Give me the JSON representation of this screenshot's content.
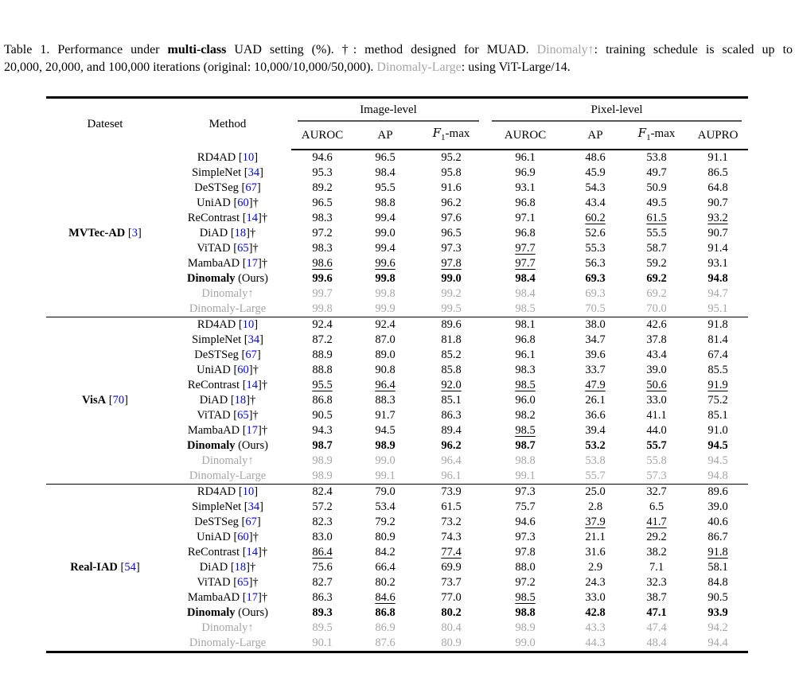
{
  "colors": {
    "citation": "#0000EE",
    "gray_text": "#A6A6A6",
    "rule": "#000000"
  },
  "caption": {
    "label": "table-1-caption",
    "lines": [
      {
        "segments": [
          {
            "text": "Table 1. Performance under ",
            "style": "normal"
          },
          {
            "text": "multi-class",
            "style": "bold"
          },
          {
            "text": " UAD setting (%). †: method designed for MUAD. ",
            "style": "normal"
          },
          {
            "text": "Dinomaly↑",
            "style": "gray"
          },
          {
            "text": ": training schedule is scaled up to",
            "style": "normal"
          }
        ]
      },
      {
        "segments": [
          {
            "text": "20,000, 20,000, and 100,000 iterations (original: 10,000/10,000/50,000). ",
            "style": "normal"
          },
          {
            "text": "Dinomaly-Large",
            "style": "gray"
          },
          {
            "text": ": using ViT-Large/14.",
            "style": "normal"
          }
        ]
      }
    ]
  },
  "table": {
    "corner_headers": [
      "Dateset",
      "Method"
    ],
    "group_headers": [
      {
        "label": "Image-level",
        "span": 3
      },
      {
        "label": "Pixel-level",
        "span": 4
      }
    ],
    "sub_headers": [
      "AUROC",
      "AP",
      "F1-max",
      "AUROC",
      "AP",
      "F1-max",
      "AUPRO"
    ],
    "groups": [
      {
        "dataset": {
          "name": "MVTec-AD",
          "cite": "3"
        },
        "rows": [
          {
            "method": "RD4AD",
            "cite": "10",
            "dagger": false,
            "style": "normal",
            "values": [
              "94.6",
              "96.5",
              "95.2",
              "96.1",
              "48.6",
              "53.8",
              "91.1"
            ],
            "underline": []
          },
          {
            "method": "SimpleNet",
            "cite": "34",
            "dagger": false,
            "style": "normal",
            "values": [
              "95.3",
              "98.4",
              "95.8",
              "96.9",
              "45.9",
              "49.7",
              "86.5"
            ],
            "underline": []
          },
          {
            "method": "DeSTSeg",
            "cite": "67",
            "dagger": false,
            "style": "normal",
            "values": [
              "89.2",
              "95.5",
              "91.6",
              "93.1",
              "54.3",
              "50.9",
              "64.8"
            ],
            "underline": []
          },
          {
            "method": "UniAD",
            "cite": "60",
            "dagger": true,
            "style": "normal",
            "values": [
              "96.5",
              "98.8",
              "96.2",
              "96.8",
              "43.4",
              "49.5",
              "90.7"
            ],
            "underline": []
          },
          {
            "method": "ReContrast",
            "cite": "14",
            "dagger": true,
            "style": "normal",
            "values": [
              "98.3",
              "99.4",
              "97.6",
              "97.1",
              "60.2",
              "61.5",
              "93.2"
            ],
            "underline": [
              4,
              5,
              6
            ]
          },
          {
            "method": "DiAD",
            "cite": "18",
            "dagger": true,
            "style": "normal",
            "values": [
              "97.2",
              "99.0",
              "96.5",
              "96.8",
              "52.6",
              "55.5",
              "90.7"
            ],
            "underline": []
          },
          {
            "method": "ViTAD",
            "cite": "65",
            "dagger": true,
            "style": "normal",
            "values": [
              "98.3",
              "99.4",
              "97.3",
              "97.7",
              "55.3",
              "58.7",
              "91.4"
            ],
            "underline": [
              3
            ]
          },
          {
            "method": "MambaAD",
            "cite": "17",
            "dagger": true,
            "style": "normal",
            "values": [
              "98.6",
              "99.6",
              "97.8",
              "97.7",
              "56.3",
              "59.2",
              "93.1"
            ],
            "underline": [
              0,
              1,
              2,
              3
            ]
          },
          {
            "method": "Dinomaly",
            "suffix": " (Ours)",
            "style": "ours",
            "values": [
              "99.6",
              "99.8",
              "99.0",
              "98.4",
              "69.3",
              "69.2",
              "94.8"
            ],
            "underline": []
          },
          {
            "method": "Dinomaly↑",
            "style": "gray",
            "values": [
              "99.7",
              "99.8",
              "99.2",
              "98.4",
              "69.3",
              "69.2",
              "94.7"
            ],
            "underline": []
          },
          {
            "method": "Dinomaly-Large",
            "style": "gray",
            "values": [
              "99.8",
              "99.9",
              "99.5",
              "98.5",
              "70.5",
              "70.0",
              "95.1"
            ],
            "underline": []
          }
        ]
      },
      {
        "dataset": {
          "name": "VisA",
          "cite": "70"
        },
        "rows": [
          {
            "method": "RD4AD",
            "cite": "10",
            "dagger": false,
            "style": "normal",
            "values": [
              "92.4",
              "92.4",
              "89.6",
              "98.1",
              "38.0",
              "42.6",
              "91.8"
            ],
            "underline": []
          },
          {
            "method": "SimpleNet",
            "cite": "34",
            "dagger": false,
            "style": "normal",
            "values": [
              "87.2",
              "87.0",
              "81.8",
              "96.8",
              "34.7",
              "37.8",
              "81.4"
            ],
            "underline": []
          },
          {
            "method": "DeSTSeg",
            "cite": "67",
            "dagger": false,
            "style": "normal",
            "values": [
              "88.9",
              "89.0",
              "85.2",
              "96.1",
              "39.6",
              "43.4",
              "67.4"
            ],
            "underline": []
          },
          {
            "method": "UniAD",
            "cite": "60",
            "dagger": true,
            "style": "normal",
            "values": [
              "88.8",
              "90.8",
              "85.8",
              "98.3",
              "33.7",
              "39.0",
              "85.5"
            ],
            "underline": []
          },
          {
            "method": "ReContrast",
            "cite": "14",
            "dagger": true,
            "style": "normal",
            "values": [
              "95.5",
              "96.4",
              "92.0",
              "98.5",
              "47.9",
              "50.6",
              "91.9"
            ],
            "underline": [
              0,
              1,
              2,
              3,
              4,
              5,
              6
            ]
          },
          {
            "method": "DiAD",
            "cite": "18",
            "dagger": true,
            "style": "normal",
            "values": [
              "86.8",
              "88.3",
              "85.1",
              "96.0",
              "26.1",
              "33.0",
              "75.2"
            ],
            "underline": []
          },
          {
            "method": "ViTAD",
            "cite": "65",
            "dagger": true,
            "style": "normal",
            "values": [
              "90.5",
              "91.7",
              "86.3",
              "98.2",
              "36.6",
              "41.1",
              "85.1"
            ],
            "underline": []
          },
          {
            "method": "MambaAD",
            "cite": "17",
            "dagger": true,
            "style": "normal",
            "values": [
              "94.3",
              "94.5",
              "89.4",
              "98.5",
              "39.4",
              "44.0",
              "91.0"
            ],
            "underline": [
              3
            ]
          },
          {
            "method": "Dinomaly",
            "suffix": " (Ours)",
            "style": "ours",
            "values": [
              "98.7",
              "98.9",
              "96.2",
              "98.7",
              "53.2",
              "55.7",
              "94.5"
            ],
            "underline": []
          },
          {
            "method": "Dinomaly↑",
            "style": "gray",
            "values": [
              "98.9",
              "99.0",
              "96.4",
              "98.8",
              "53.8",
              "55.8",
              "94.5"
            ],
            "underline": []
          },
          {
            "method": "Dinomaly-Large",
            "style": "gray",
            "values": [
              "98.9",
              "99.1",
              "96.1",
              "99.1",
              "55.7",
              "57.3",
              "94.8"
            ],
            "underline": []
          }
        ]
      },
      {
        "dataset": {
          "name": "Real-IAD",
          "cite": "54"
        },
        "rows": [
          {
            "method": "RD4AD",
            "cite": "10",
            "dagger": false,
            "style": "normal",
            "values": [
              "82.4",
              "79.0",
              "73.9",
              "97.3",
              "25.0",
              "32.7",
              "89.6"
            ],
            "underline": []
          },
          {
            "method": "SimpleNet",
            "cite": "34",
            "dagger": false,
            "style": "normal",
            "values": [
              "57.2",
              "53.4",
              "61.5",
              "75.7",
              "2.8",
              "6.5",
              "39.0"
            ],
            "underline": []
          },
          {
            "method": "DeSTSeg",
            "cite": "67",
            "dagger": false,
            "style": "normal",
            "values": [
              "82.3",
              "79.2",
              "73.2",
              "94.6",
              "37.9",
              "41.7",
              "40.6"
            ],
            "underline": [
              4,
              5
            ]
          },
          {
            "method": "UniAD",
            "cite": "60",
            "dagger": true,
            "style": "normal",
            "values": [
              "83.0",
              "80.9",
              "74.3",
              "97.3",
              "21.1",
              "29.2",
              "86.7"
            ],
            "underline": []
          },
          {
            "method": "ReContrast",
            "cite": "14",
            "dagger": true,
            "style": "normal",
            "values": [
              "86.4",
              "84.2",
              "77.4",
              "97.8",
              "31.6",
              "38.2",
              "91.8"
            ],
            "underline": [
              0,
              2,
              6
            ]
          },
          {
            "method": "DiAD",
            "cite": "18",
            "dagger": true,
            "style": "normal",
            "values": [
              "75.6",
              "66.4",
              "69.9",
              "88.0",
              "2.9",
              "7.1",
              "58.1"
            ],
            "underline": []
          },
          {
            "method": "ViTAD",
            "cite": "65",
            "dagger": true,
            "style": "normal",
            "values": [
              "82.7",
              "80.2",
              "73.7",
              "97.2",
              "24.3",
              "32.3",
              "84.8"
            ],
            "underline": []
          },
          {
            "method": "MambaAD",
            "cite": "17",
            "dagger": true,
            "style": "normal",
            "values": [
              "86.3",
              "84.6",
              "77.0",
              "98.5",
              "33.0",
              "38.7",
              "90.5"
            ],
            "underline": [
              1,
              3
            ]
          },
          {
            "method": "Dinomaly",
            "suffix": " (Ours)",
            "style": "ours",
            "values": [
              "89.3",
              "86.8",
              "80.2",
              "98.8",
              "42.8",
              "47.1",
              "93.9"
            ],
            "underline": []
          },
          {
            "method": "Dinomaly↑",
            "style": "gray",
            "values": [
              "89.5",
              "86.9",
              "80.4",
              "98.9",
              "43.3",
              "47.4",
              "94.2"
            ],
            "underline": []
          },
          {
            "method": "Dinomaly-Large",
            "style": "gray",
            "values": [
              "90.1",
              "87.6",
              "80.9",
              "99.0",
              "44.3",
              "48.4",
              "94.4"
            ],
            "underline": []
          }
        ]
      }
    ]
  }
}
